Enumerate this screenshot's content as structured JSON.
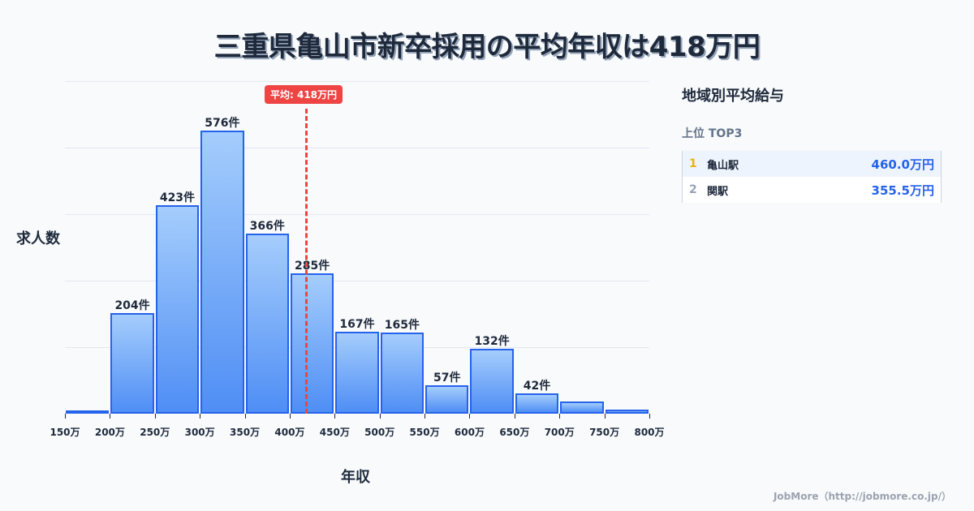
{
  "title": "三重県亀山市新卒採用の平均年収は418万円",
  "chart_data": {
    "type": "bar",
    "title": "三重県亀山市新卒採用の平均年収は418万円",
    "xlabel": "年収",
    "ylabel": "求人数",
    "categories": [
      "150-200万",
      "200-250万",
      "250-300万",
      "300-350万",
      "350-400万",
      "400-450万",
      "450-500万",
      "500-550万",
      "550-600万",
      "600-650万",
      "650-700万",
      "700-750万",
      "750-800万"
    ],
    "values": [
      5,
      204,
      423,
      576,
      366,
      285,
      167,
      165,
      57,
      132,
      42,
      25,
      8
    ],
    "value_labels": [
      "",
      "204件",
      "423件",
      "576件",
      "366件",
      "285件",
      "167件",
      "165件",
      "57件",
      "132件",
      "42件",
      "",
      ""
    ],
    "x_ticks": [
      "150万",
      "200万",
      "250万",
      "300万",
      "350万",
      "400万",
      "450万",
      "500万",
      "550万",
      "600万",
      "650万",
      "700万",
      "750万",
      "800万"
    ],
    "ylim": [
      0,
      676
    ],
    "grid": true,
    "average": {
      "value": 418,
      "label": "平均: 418万円",
      "color": "#ef4444"
    },
    "bar_color": "#2563eb"
  },
  "axis": {
    "xlabel": "年収",
    "ylabel": "求人数"
  },
  "panel": {
    "title": "地域別平均給与",
    "subtitle": "上位 TOP3",
    "rows": [
      {
        "rank": "1",
        "name": "亀山駅",
        "value": "460.0万円",
        "rank_color": "#eab308"
      },
      {
        "rank": "2",
        "name": "関駅",
        "value": "355.5万円",
        "rank_color": "#94a3b8"
      }
    ]
  },
  "footer": "JobMore（http://jobmore.co.jp/）"
}
